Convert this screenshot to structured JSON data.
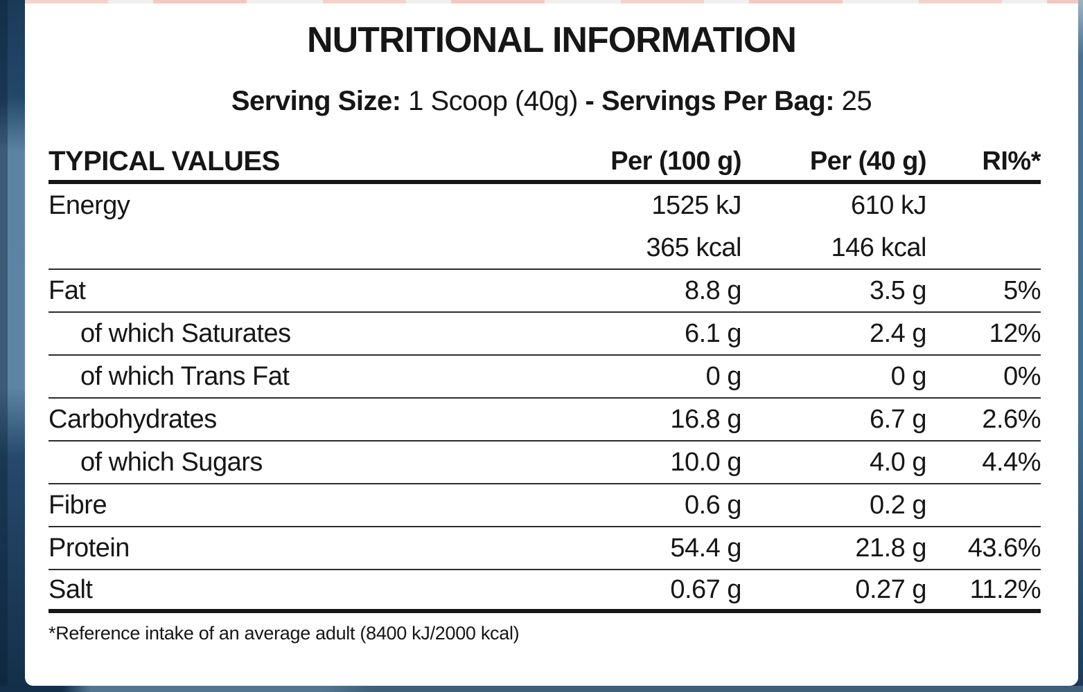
{
  "page": {
    "title": "NUTRITIONAL INFORMATION",
    "serving_line": {
      "serving_size_label": "Serving Size:",
      "serving_size_value": " 1 Scoop (40g) ",
      "separator": "- ",
      "servings_per_bag_label": "Servings Per Bag:",
      "servings_per_bag_value": " 25"
    },
    "table": {
      "headers": {
        "col_name": "TYPICAL VALUES",
        "col_per100": "Per (100 g)",
        "col_per40": "Per (40 g)",
        "col_ri": "RI%*"
      },
      "rows": [
        {
          "name": "Energy",
          "per100": "1525 kJ",
          "per40": "610 kJ",
          "ri": ""
        },
        {
          "name": "",
          "per100": "365 kcal",
          "per40": "146 kcal",
          "ri": ""
        },
        {
          "name": "Fat",
          "per100": "8.8 g",
          "per40": "3.5 g",
          "ri": "5%"
        },
        {
          "name": "of which Saturates",
          "per100": "6.1 g",
          "per40": "2.4 g",
          "ri": "12%"
        },
        {
          "name": "of which Trans Fat",
          "per100": "0 g",
          "per40": "0 g",
          "ri": "0%"
        },
        {
          "name": "Carbohydrates",
          "per100": "16.8 g",
          "per40": "6.7 g",
          "ri": "2.6%"
        },
        {
          "name": "of which Sugars",
          "per100": "10.0 g",
          "per40": "4.0 g",
          "ri": "4.4%"
        },
        {
          "name": "Fibre",
          "per100": "0.6 g",
          "per40": "0.2 g",
          "ri": ""
        },
        {
          "name": "Protein",
          "per100": "54.4 g",
          "per40": "21.8 g",
          "ri": "43.6%"
        },
        {
          "name": "Salt",
          "per100": "0.67 g",
          "per40": "0.27 g",
          "ri": "11.2%"
        }
      ]
    },
    "footnote": "*Reference intake of an average adult (8400 kJ/2000 kcal)",
    "colors": {
      "text": "#161616",
      "label_background": "#ffffff",
      "pouch_navy": "#16334f",
      "pouch_steel_blue": "#5d83a4",
      "pouch_bottom": "#3f5f78"
    }
  }
}
